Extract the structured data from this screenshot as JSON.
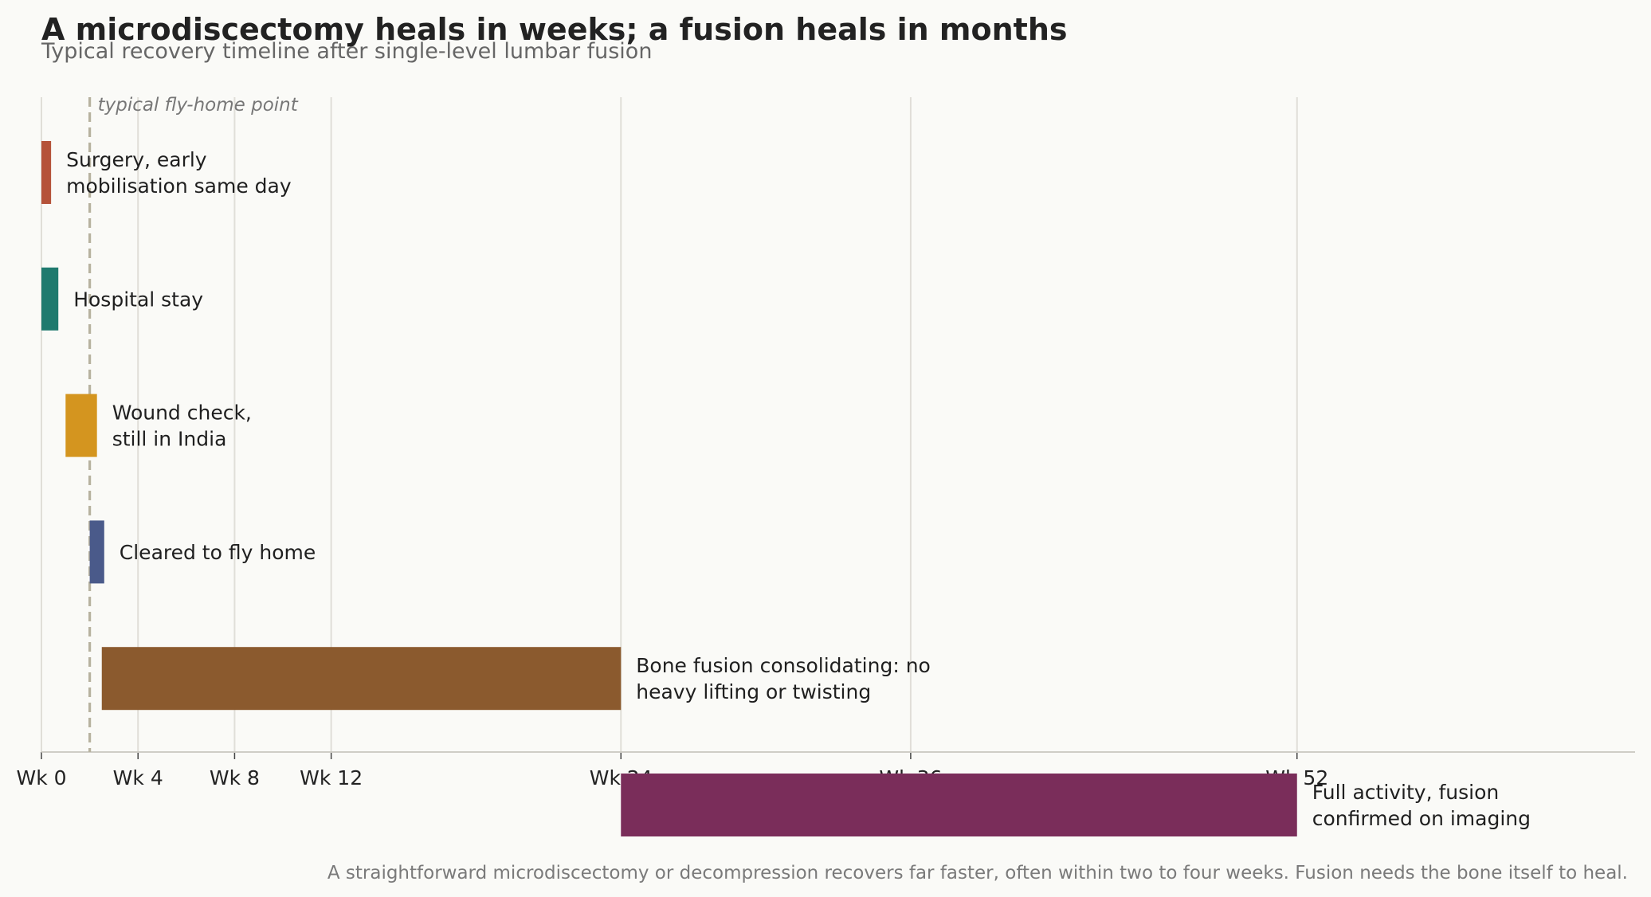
{
  "chart_data": {
    "type": "bar",
    "orientation": "horizontal-gantt",
    "title": "A microdiscectomy heals in weeks; a fusion heals in months",
    "subtitle": "Typical recovery timeline after single-level lumbar fusion",
    "footnote": "A straightforward microdiscectomy or decompression recovers far faster, often within two to four weeks. Fusion needs the bone itself to heal.",
    "x_unit": "weeks",
    "xlim": [
      0,
      66
    ],
    "x_ticks": [
      {
        "value": 0,
        "label": "Wk 0"
      },
      {
        "value": 4,
        "label": "Wk 4"
      },
      {
        "value": 8,
        "label": "Wk 8"
      },
      {
        "value": 12,
        "label": "Wk 12"
      },
      {
        "value": 24,
        "label": "Wk 24"
      },
      {
        "value": 36,
        "label": "Wk 36"
      },
      {
        "value": 52,
        "label": "Wk 52"
      }
    ],
    "grid": "vertical",
    "reference_line": {
      "x": 2,
      "label": "typical fly-home point"
    },
    "tasks": [
      {
        "label_lines": [
          "Surgery, early",
          "mobilisation same day"
        ],
        "start": 0,
        "end": 0.4,
        "color": "#b5533a"
      },
      {
        "label_lines": [
          "Hospital stay"
        ],
        "start": 0,
        "end": 0.7,
        "color": "#1f7a6e"
      },
      {
        "label_lines": [
          "Wound check,",
          "still in India"
        ],
        "start": 1.0,
        "end": 2.3,
        "color": "#d4951f"
      },
      {
        "label_lines": [
          "Cleared to fly home"
        ],
        "start": 2.0,
        "end": 2.6,
        "color": "#4a5a8a"
      },
      {
        "label_lines": [
          "Bone fusion consolidating: no",
          "heavy lifting or twisting"
        ],
        "start": 2.5,
        "end": 24,
        "color": "#8b5a2e"
      },
      {
        "label_lines": [
          "Full activity, fusion",
          "confirmed on imaging"
        ],
        "start": 24,
        "end": 52,
        "color": "#7a2d5a"
      }
    ]
  }
}
